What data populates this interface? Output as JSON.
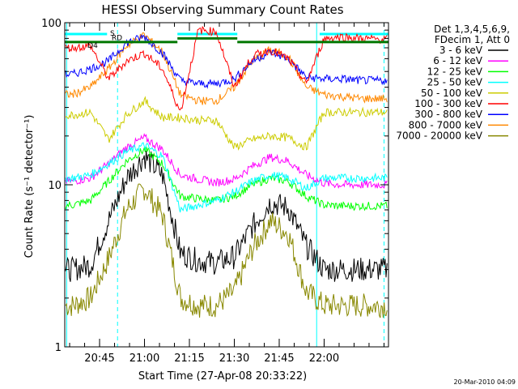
{
  "chart_data": {
    "type": "line",
    "title": "HESSI Observing Summary Count Rates",
    "xlabel": "Start Time (27-Apr-08 20:33:22)",
    "ylabel": "Count Rate (s⁻¹ detector⁻¹)",
    "yscale": "log",
    "ylim": [
      1,
      100
    ],
    "y_ticks": [
      "1",
      "10",
      "100"
    ],
    "x_ticks": [
      "20:45",
      "21:00",
      "21:15",
      "21:30",
      "21:45",
      "22:00"
    ],
    "xlim": [
      "20:33:22",
      "22:21:30"
    ],
    "grid": false,
    "legend_position": "right",
    "legend_header": [
      "Det 1,3,4,5,6,9,",
      "FDecim 1, Att 0"
    ],
    "timestamp": "20-Mar-2010 04:09",
    "flag_labels": [
      "S",
      "RD",
      "D4"
    ],
    "shading": {
      "night_windows": [
        [
          "20:33:22",
          "20:47:30"
        ],
        [
          "21:11:00",
          "21:31:00"
        ],
        [
          "21:58:30",
          "22:21:30"
        ]
      ],
      "saa_vertical_lines_dashed": [
        "20:51:00",
        "22:20:00"
      ],
      "saa_vertical_lines_solid": [
        "20:34:00",
        "21:57:30"
      ]
    },
    "x": [
      "20:36",
      "20:42",
      "20:48",
      "20:54",
      "21:00",
      "21:06",
      "21:12",
      "21:18",
      "21:24",
      "21:30",
      "21:36",
      "21:42",
      "21:48",
      "21:54",
      "22:00",
      "22:06",
      "22:12",
      "22:18"
    ],
    "series": [
      {
        "name": "3 - 6 keV",
        "color": "#000000",
        "values": [
          3.0,
          3.2,
          6.0,
          11.0,
          15.0,
          11.5,
          3.8,
          3.4,
          3.3,
          3.6,
          5.5,
          7.8,
          7.2,
          4.2,
          3.0,
          3.0,
          3.0,
          3.0
        ]
      },
      {
        "name": "6 - 12 keV",
        "color": "#ff00ff",
        "values": [
          10.5,
          11.0,
          13.5,
          17.0,
          19.5,
          16.5,
          11.5,
          10.8,
          10.3,
          10.8,
          13.0,
          14.8,
          14.0,
          11.5,
          10.2,
          10.0,
          10.0,
          10.0
        ]
      },
      {
        "name": "12 - 25 keV",
        "color": "#00ff00",
        "values": [
          7.5,
          8.0,
          10.5,
          14.0,
          16.5,
          13.5,
          8.5,
          8.2,
          8.0,
          8.5,
          10.0,
          11.0,
          10.5,
          8.5,
          7.5,
          7.4,
          7.4,
          7.4
        ]
      },
      {
        "name": "25 - 50 keV",
        "color": "#00ffff",
        "values": [
          11.0,
          11.5,
          13.5,
          16.0,
          17.5,
          15.0,
          7.0,
          7.5,
          8.0,
          9.0,
          10.5,
          11.5,
          11.0,
          9.5,
          11.0,
          11.0,
          11.0,
          11.0
        ]
      },
      {
        "name": "50 - 100 keV",
        "color": "#cccc00",
        "values": [
          27.0,
          28.0,
          19.0,
          27.0,
          33.0,
          26.0,
          26.0,
          25.0,
          25.0,
          17.0,
          19.0,
          20.0,
          19.5,
          17.0,
          28.0,
          28.0,
          28.0,
          28.0
        ]
      },
      {
        "name": "100 - 300 keV",
        "color": "#ff0000",
        "values": [
          70.0,
          72.0,
          45.0,
          58.0,
          65.0,
          52.0,
          28.0,
          90.0,
          88.0,
          40.0,
          62.0,
          68.0,
          60.0,
          42.0,
          80.0,
          82.0,
          80.0,
          79.0
        ]
      },
      {
        "name": "300 - 800 keV",
        "color": "#0000ff",
        "values": [
          48.0,
          52.0,
          58.0,
          75.0,
          82.0,
          65.0,
          44.0,
          42.0,
          42.0,
          45.0,
          58.0,
          66.0,
          60.0,
          46.0,
          45.0,
          45.0,
          44.0,
          44.0
        ]
      },
      {
        "name": "800 - 7000 keV",
        "color": "#ff8800",
        "values": [
          36.0,
          40.0,
          52.0,
          72.0,
          84.0,
          66.0,
          36.0,
          33.0,
          33.0,
          40.0,
          58.0,
          68.0,
          62.0,
          40.0,
          36.0,
          35.0,
          34.0,
          34.0
        ]
      },
      {
        "name": "7000 - 20000 keV",
        "color": "#888800",
        "values": [
          1.8,
          2.0,
          3.5,
          7.0,
          9.5,
          6.5,
          2.0,
          1.8,
          1.8,
          2.2,
          4.0,
          6.0,
          5.0,
          2.2,
          1.8,
          1.8,
          1.8,
          1.8
        ]
      }
    ]
  }
}
